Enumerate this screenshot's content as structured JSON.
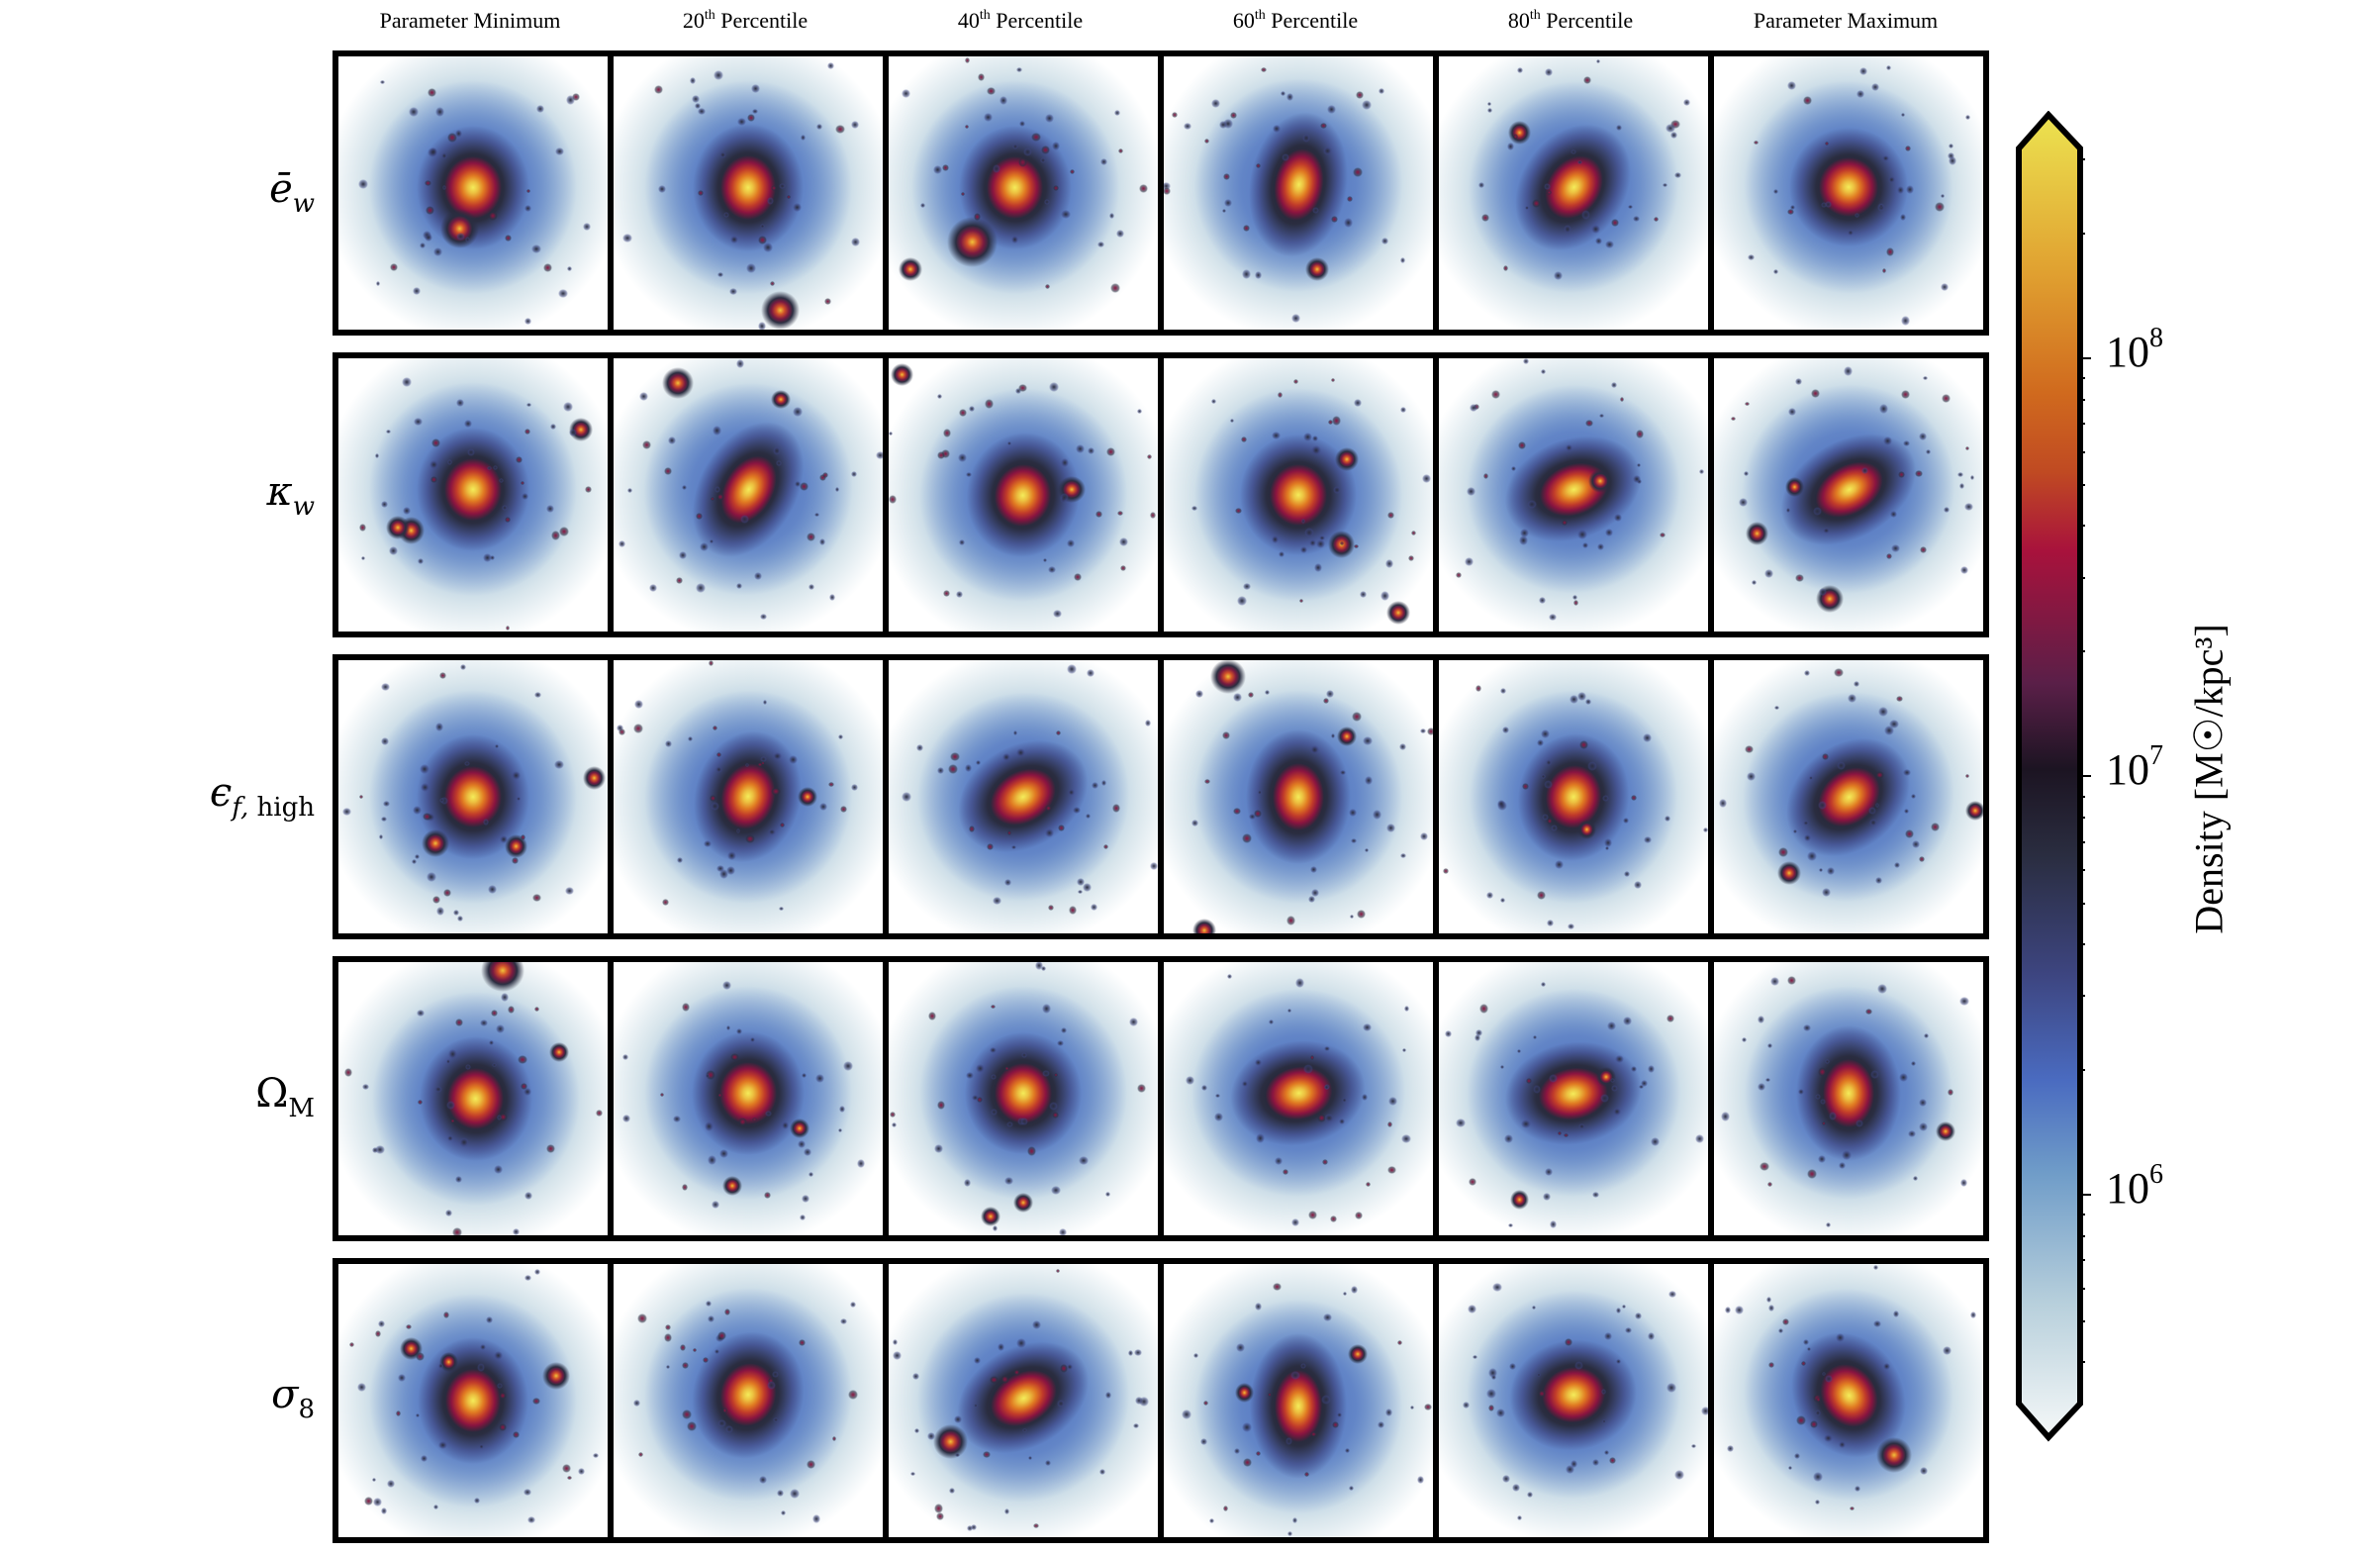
{
  "chart_data": {
    "type": "heatmap",
    "title": "",
    "description": "5x6 grid of projected dark-matter density maps of simulated halos; rows vary one parameter, columns go from parameter minimum to maximum",
    "columns": [
      "Parameter Minimum",
      "20th Percentile",
      "40th Percentile",
      "60th Percentile",
      "80th Percentile",
      "Parameter Maximum"
    ],
    "rows": [
      "ē_w",
      "κ_w",
      "ε_f,high",
      "Ω_M",
      "σ_8"
    ],
    "colorbar": {
      "label": "Density [M☉/kpc³]",
      "scale": "log",
      "ticks": [
        {
          "value": 100000000,
          "label": "10^8"
        },
        {
          "value": 10000000,
          "label": "10^7"
        },
        {
          "value": 1000000,
          "label": "10^6"
        }
      ],
      "range": [
        316227,
        316227766
      ],
      "extend": "both",
      "colormap": [
        "#f5f8f8",
        "#b8d0dc",
        "#6f9cc8",
        "#4a6bc0",
        "#3d4580",
        "#2a2d40",
        "#1c1422",
        "#5a1f48",
        "#a8123c",
        "#c04a22",
        "#d06a1e",
        "#e0a030",
        "#ece350"
      ]
    }
  },
  "headers": {
    "c0": {
      "pre": "Parameter Minimum",
      "sup": "",
      "post": ""
    },
    "c1": {
      "pre": "20",
      "sup": "th",
      "post": " Percentile"
    },
    "c2": {
      "pre": "40",
      "sup": "th",
      "post": " Percentile"
    },
    "c3": {
      "pre": "60",
      "sup": "th",
      "post": " Percentile"
    },
    "c4": {
      "pre": "80",
      "sup": "th",
      "post": " Percentile"
    },
    "c5": {
      "pre": "Parameter Maximum",
      "sup": "",
      "post": ""
    }
  },
  "row_labels": {
    "r0": {
      "main": "ē",
      "sub": "w",
      "sub_upright": false
    },
    "r1": {
      "main": "κ",
      "sub": "w",
      "sub_upright": false
    },
    "r2": {
      "main": "ϵ",
      "sub": "f,",
      "sub2": " high",
      "sub_upright": false
    },
    "r3": {
      "main": "Ω",
      "sub": "M",
      "sub_upright": true
    },
    "r4": {
      "main": "σ",
      "sub": "8",
      "sub_upright": true
    }
  },
  "colorbar": {
    "label": "Density [M☉/kpc³]",
    "tick_10_8": {
      "base": "10",
      "exp": "8"
    },
    "tick_10_7": {
      "base": "10",
      "exp": "7"
    },
    "tick_10_6": {
      "base": "10",
      "exp": "6"
    }
  },
  "cells": [
    [
      {
        "core": [
          0.5,
          0.48
        ],
        "rot": 0,
        "elong": 1.1,
        "sats": [
          [
            0.45,
            0.63,
            1.0
          ]
        ]
      },
      {
        "core": [
          0.5,
          0.48
        ],
        "rot": 0,
        "elong": 1.15,
        "sats": [
          [
            0.62,
            0.93,
            1.0
          ]
        ]
      },
      {
        "core": [
          0.47,
          0.48
        ],
        "rot": 0,
        "elong": 1.1,
        "sats": [
          [
            0.31,
            0.68,
            1.3
          ],
          [
            0.08,
            0.78,
            0.6
          ]
        ]
      },
      {
        "core": [
          0.5,
          0.47
        ],
        "rot": 10,
        "elong": 1.5,
        "sats": [
          [
            0.57,
            0.78,
            0.6
          ]
        ]
      },
      {
        "core": [
          0.5,
          0.48
        ],
        "rot": 35,
        "elong": 1.3,
        "sats": [
          [
            0.3,
            0.28,
            0.6
          ]
        ]
      },
      {
        "core": [
          0.5,
          0.48
        ],
        "rot": -20,
        "elong": 1.0,
        "sats": []
      }
    ],
    [
      {
        "core": [
          0.5,
          0.48
        ],
        "rot": 0,
        "elong": 1.1,
        "sats": [
          [
            0.27,
            0.63,
            0.7
          ],
          [
            0.22,
            0.62,
            0.6
          ],
          [
            0.9,
            0.26,
            0.6
          ]
        ]
      },
      {
        "core": [
          0.5,
          0.48
        ],
        "rot": 30,
        "elong": 1.5,
        "sats": [
          [
            0.24,
            0.09,
            0.8
          ],
          [
            0.62,
            0.15,
            0.5
          ]
        ]
      },
      {
        "core": [
          0.5,
          0.5
        ],
        "rot": 10,
        "elong": 1.1,
        "sats": [
          [
            0.68,
            0.48,
            0.7
          ],
          [
            0.05,
            0.06,
            0.6
          ]
        ]
      },
      {
        "core": [
          0.5,
          0.5
        ],
        "rot": 0,
        "elong": 1.05,
        "sats": [
          [
            0.66,
            0.68,
            0.7
          ],
          [
            0.68,
            0.37,
            0.6
          ],
          [
            0.87,
            0.93,
            0.6
          ]
        ]
      },
      {
        "core": [
          0.5,
          0.48
        ],
        "rot": 70,
        "elong": 1.4,
        "sats": [
          [
            0.6,
            0.45,
            0.6
          ]
        ]
      },
      {
        "core": [
          0.5,
          0.48
        ],
        "rot": 60,
        "elong": 1.5,
        "sats": [
          [
            0.16,
            0.64,
            0.6
          ],
          [
            0.43,
            0.88,
            0.7
          ],
          [
            0.3,
            0.47,
            0.5
          ]
        ]
      }
    ],
    [
      {
        "core": [
          0.5,
          0.5
        ],
        "rot": 0,
        "elong": 1.1,
        "sats": [
          [
            0.36,
            0.67,
            0.7
          ],
          [
            0.66,
            0.68,
            0.6
          ],
          [
            0.95,
            0.43,
            0.6
          ]
        ]
      },
      {
        "core": [
          0.5,
          0.5
        ],
        "rot": 15,
        "elong": 1.25,
        "sats": [
          [
            0.72,
            0.5,
            0.5
          ]
        ]
      },
      {
        "core": [
          0.5,
          0.5
        ],
        "rot": 60,
        "elong": 1.35,
        "sats": []
      },
      {
        "core": [
          0.5,
          0.5
        ],
        "rot": 0,
        "elong": 1.3,
        "sats": [
          [
            0.24,
            0.06,
            0.9
          ],
          [
            0.68,
            0.28,
            0.5
          ],
          [
            0.15,
            0.99,
            0.6
          ]
        ]
      },
      {
        "core": [
          0.5,
          0.5
        ],
        "rot": 10,
        "elong": 1.15,
        "sats": [
          [
            0.55,
            0.62,
            0.5
          ]
        ]
      },
      {
        "core": [
          0.5,
          0.5
        ],
        "rot": 50,
        "elong": 1.3,
        "sats": [
          [
            0.28,
            0.78,
            0.6
          ],
          [
            0.97,
            0.55,
            0.5
          ]
        ]
      }
    ],
    [
      {
        "core": [
          0.51,
          0.5
        ],
        "rot": 0,
        "elong": 1.1,
        "sats": [
          [
            0.61,
            0.03,
            1.1
          ],
          [
            0.82,
            0.33,
            0.5
          ]
        ]
      },
      {
        "core": [
          0.5,
          0.48
        ],
        "rot": 0,
        "elong": 1.1,
        "sats": [
          [
            0.69,
            0.61,
            0.5
          ],
          [
            0.44,
            0.82,
            0.5
          ]
        ]
      },
      {
        "core": [
          0.5,
          0.48
        ],
        "rot": 0,
        "elong": 1.05,
        "sats": [
          [
            0.5,
            0.88,
            0.5
          ],
          [
            0.38,
            0.93,
            0.5
          ]
        ]
      },
      {
        "core": [
          0.5,
          0.48
        ],
        "rot": 80,
        "elong": 1.3,
        "sats": []
      },
      {
        "core": [
          0.5,
          0.48
        ],
        "rot": 80,
        "elong": 1.35,
        "sats": [
          [
            0.62,
            0.42,
            0.5
          ],
          [
            0.3,
            0.87,
            0.5
          ]
        ]
      },
      {
        "core": [
          0.5,
          0.48
        ],
        "rot": 0,
        "elong": 1.3,
        "sats": [
          [
            0.86,
            0.62,
            0.5
          ]
        ]
      }
    ],
    [
      {
        "core": [
          0.5,
          0.5
        ],
        "rot": 0,
        "elong": 1.15,
        "sats": [
          [
            0.27,
            0.31,
            0.6
          ],
          [
            0.81,
            0.41,
            0.7
          ],
          [
            0.41,
            0.36,
            0.5
          ]
        ]
      },
      {
        "core": [
          0.5,
          0.48
        ],
        "rot": 15,
        "elong": 1.15,
        "sats": []
      },
      {
        "core": [
          0.5,
          0.49
        ],
        "rot": 60,
        "elong": 1.4,
        "sats": [
          [
            0.23,
            0.65,
            0.9
          ]
        ]
      },
      {
        "core": [
          0.5,
          0.52
        ],
        "rot": 0,
        "elong": 1.5,
        "sats": [
          [
            0.3,
            0.47,
            0.5
          ],
          [
            0.72,
            0.33,
            0.5
          ]
        ]
      },
      {
        "core": [
          0.5,
          0.48
        ],
        "rot": 80,
        "elong": 1.15,
        "sats": []
      },
      {
        "core": [
          0.5,
          0.48
        ],
        "rot": -30,
        "elong": 1.2,
        "sats": [
          [
            0.67,
            0.7,
            0.9
          ]
        ]
      }
    ]
  ]
}
